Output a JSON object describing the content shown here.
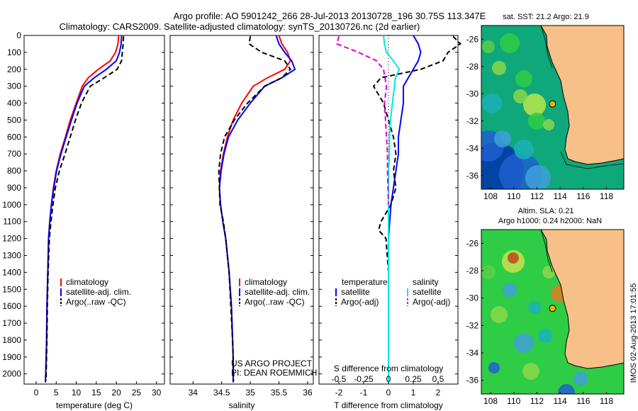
{
  "title_line1": "Argo profile: AO 5901242_266 28-Jul-2013 20130728_196 30.75S 113.347E",
  "title_line2": "Climatology: CARS2009. Satellite-adjusted climatology: synTS_20130726.nc (2d earlier)",
  "timestamp": "IMOS 02-Aug-2013 17:01:55",
  "credit": {
    "line1": "US ARGO PROJECT",
    "line2": "PI: DEAN ROEMMICH"
  },
  "colors": {
    "climatology": "#ff0000",
    "satellite": "#0000ff",
    "argo": "#000000",
    "sat_salinity": "#00e5e5",
    "argo_sal_adj": "#e000e0",
    "land": "#f7c089"
  },
  "chart_data": [
    {
      "id": "temperature",
      "type": "line",
      "xlabel": "temperature (deg C)",
      "ylabel": "",
      "xlim": [
        -3,
        32
      ],
      "ylim": [
        2060,
        0
      ],
      "xticks": [
        0,
        5,
        10,
        15,
        20,
        25,
        30
      ],
      "yticks": [
        0,
        100,
        200,
        300,
        400,
        500,
        600,
        700,
        800,
        900,
        1000,
        1100,
        1200,
        1300,
        1400,
        1500,
        1600,
        1700,
        1800,
        1900,
        2000
      ],
      "legend": [
        "climatology",
        "satellite-adj. clim.",
        "Argo(..raw -QC)"
      ],
      "series": [
        {
          "name": "climatology",
          "color": "#ff0000",
          "style": "solid",
          "x": [
            20.6,
            20.4,
            19.8,
            18.5,
            15.5,
            13.0,
            11.5,
            10.0,
            8.5,
            7.3,
            6.0,
            5.0,
            4.3,
            3.8,
            3.4,
            3.1,
            2.9,
            2.7,
            2.6,
            2.5,
            2.4,
            2.3
          ],
          "y": [
            0,
            50,
            100,
            150,
            200,
            250,
            300,
            400,
            500,
            600,
            700,
            800,
            900,
            1000,
            1100,
            1200,
            1400,
            1600,
            1800,
            1900,
            2000,
            2050
          ]
        },
        {
          "name": "satellite-adj. clim.",
          "color": "#0000ff",
          "style": "solid",
          "x": [
            21.3,
            21.2,
            20.8,
            20.0,
            17.5,
            14.5,
            12.0,
            10.2,
            8.8,
            7.5,
            6.2,
            5.1,
            4.4,
            3.8,
            3.4,
            3.1,
            2.9,
            2.7,
            2.6,
            2.5,
            2.4,
            2.3
          ],
          "y": [
            0,
            50,
            100,
            150,
            200,
            250,
            300,
            400,
            500,
            600,
            700,
            800,
            900,
            1000,
            1100,
            1200,
            1400,
            1600,
            1800,
            1900,
            2000,
            2050
          ]
        },
        {
          "name": "Argo(..raw -QC)",
          "color": "#000000",
          "style": "dashed",
          "x": [
            21.8,
            21.7,
            21.5,
            21.3,
            20.2,
            17.0,
            13.5,
            11.3,
            9.8,
            8.5,
            7.2,
            5.8,
            4.8,
            4.2,
            3.7,
            3.3,
            3.0,
            2.8,
            2.7,
            2.6,
            2.5,
            2.5
          ],
          "y": [
            5,
            50,
            100,
            150,
            200,
            250,
            300,
            400,
            500,
            600,
            700,
            800,
            900,
            1000,
            1100,
            1200,
            1400,
            1600,
            1800,
            1900,
            2000,
            2040
          ]
        }
      ]
    },
    {
      "id": "salinity",
      "type": "line",
      "xlabel": "salinity",
      "xlim": [
        33.6,
        36.1
      ],
      "ylim": [
        2060,
        0
      ],
      "xticks": [
        34,
        34.5,
        35,
        35.5,
        36
      ],
      "xticklabels": [
        "34",
        "34.5",
        "35",
        "35.5",
        "36"
      ],
      "legend": [
        "climatology",
        "satellite-adj. clim.",
        "Argo(..raw -QC)"
      ],
      "series": [
        {
          "name": "climatology",
          "color": "#ff0000",
          "style": "solid",
          "x": [
            35.5,
            35.55,
            35.65,
            35.7,
            35.6,
            35.3,
            35.05,
            34.85,
            34.7,
            34.6,
            34.53,
            34.48,
            34.46,
            34.48,
            34.52,
            34.57,
            34.63,
            34.67,
            34.69,
            34.7,
            34.7
          ],
          "y": [
            0,
            50,
            100,
            150,
            200,
            250,
            300,
            400,
            500,
            600,
            700,
            800,
            900,
            1000,
            1100,
            1200,
            1400,
            1600,
            1800,
            1900,
            2050
          ]
        },
        {
          "name": "satellite-adj. clim.",
          "color": "#0000ff",
          "style": "solid",
          "x": [
            35.45,
            35.5,
            35.6,
            35.72,
            35.78,
            35.55,
            35.25,
            35.0,
            34.78,
            34.62,
            34.54,
            34.49,
            34.46,
            34.48,
            34.52,
            34.57,
            34.63,
            34.67,
            34.69,
            34.7,
            34.7
          ],
          "y": [
            0,
            50,
            100,
            150,
            200,
            250,
            300,
            400,
            500,
            600,
            700,
            800,
            900,
            1000,
            1100,
            1200,
            1400,
            1600,
            1800,
            1900,
            2050
          ]
        },
        {
          "name": "Argo(..raw -QC)",
          "color": "#000000",
          "style": "dashed",
          "x": [
            35.0,
            34.98,
            35.2,
            35.6,
            35.7,
            35.55,
            35.25,
            34.95,
            34.72,
            34.55,
            34.48,
            34.45,
            34.46,
            34.47,
            34.53,
            34.57,
            34.63,
            34.66,
            34.69,
            34.7,
            34.71
          ],
          "y": [
            5,
            50,
            100,
            150,
            200,
            250,
            300,
            400,
            500,
            600,
            700,
            800,
            900,
            1000,
            1100,
            1200,
            1400,
            1600,
            1800,
            1900,
            2040
          ]
        }
      ]
    },
    {
      "id": "difference",
      "type": "line",
      "xlabel_bottom": "T difference from climatology",
      "xlabel_top": "S difference from climatology",
      "xlim": [
        -2.8,
        2.8
      ],
      "ylim": [
        2060,
        0
      ],
      "xticks_T": [
        -2,
        -1,
        0,
        1,
        2
      ],
      "xticks_S": [
        -0.5,
        -0.25,
        0,
        0.25,
        0.5
      ],
      "xticklabels_S": [
        "-0.5",
        "-0.25",
        "0",
        "0.25",
        "0.5"
      ],
      "legend_temperature_title": "temperature",
      "legend_salinity_title": "salinity",
      "legend_temperature": [
        "satellite",
        "Argo(-adj)"
      ],
      "legend_salinity": [
        "satellite",
        "Argo(-adj)"
      ],
      "series": [
        {
          "name": "satellite",
          "group": "temperature",
          "color": "#0000ff",
          "style": "solid",
          "x": [
            1.0,
            1.2,
            1.3,
            1.2,
            1.0,
            0.8,
            0.6,
            0.6,
            0.5,
            0.4,
            0.4,
            0.3,
            0.2,
            0.1,
            0.0,
            0.0,
            0.0,
            0.0,
            0.0
          ],
          "y": [
            0,
            50,
            100,
            150,
            200,
            250,
            300,
            400,
            500,
            600,
            700,
            800,
            900,
            1000,
            1200,
            1400,
            1600,
            1800,
            2050
          ]
        },
        {
          "name": "Argo(-adj)",
          "group": "temperature",
          "color": "#000000",
          "style": "dashed",
          "x": [
            2.6,
            2.9,
            2.4,
            2.2,
            1.3,
            -0.3,
            -0.6,
            -0.2,
            0.0,
            0.2,
            0.3,
            0.2,
            0.3,
            0.1,
            -0.3,
            -0.4,
            -0.1,
            0.0,
            0.0,
            0.0
          ],
          "y": [
            5,
            50,
            100,
            150,
            200,
            250,
            300,
            400,
            500,
            600,
            700,
            800,
            900,
            1000,
            1100,
            1150,
            1200,
            1400,
            1600,
            2040
          ]
        },
        {
          "name": "satellite",
          "group": "salinity",
          "color": "#00e5e5",
          "style": "solid",
          "x": [
            -0.05,
            -0.04,
            -0.02,
            0.05,
            0.11,
            0.07,
            0.06,
            0.04,
            0.02,
            0.01,
            0.01,
            0.0,
            0.0,
            0.0
          ],
          "y": [
            0,
            50,
            100,
            150,
            200,
            250,
            300,
            400,
            500,
            600,
            700,
            800,
            1200,
            2050
          ]
        },
        {
          "name": "Argo(-adj)",
          "group": "salinity",
          "color": "#e000e0",
          "style": "dashed",
          "x": [
            -0.5,
            -0.52,
            -0.3,
            -0.12,
            -0.05,
            -0.02,
            -0.04,
            -0.03,
            -0.02,
            -0.01,
            -0.01,
            0.0
          ],
          "y": [
            5,
            50,
            100,
            150,
            200,
            300,
            400,
            500,
            600,
            700,
            800,
            1000
          ]
        }
      ]
    },
    {
      "id": "sst-map",
      "type": "heatmap",
      "title": "sat. SST: 21.2 Argo: 21.9",
      "xlim": [
        107.2,
        119.5
      ],
      "ylim": [
        -37,
        -25
      ],
      "xticks": [
        108,
        110,
        112,
        114,
        116,
        118
      ],
      "yticks": [
        -26,
        -28,
        -30,
        -32,
        -34,
        -36
      ],
      "float_lon": 113.347,
      "float_lat": -30.75
    },
    {
      "id": "sla-map",
      "type": "heatmap",
      "title_line1": "Altim. SLA: 0.21",
      "title_line2": "Argo h1000: 0.24 h2000: NaN",
      "xlim": [
        107.2,
        119.5
      ],
      "ylim": [
        -37,
        -25
      ],
      "xticks": [
        108,
        110,
        112,
        114,
        116,
        118
      ],
      "yticks": [
        -26,
        -28,
        -30,
        -32,
        -34,
        -36
      ],
      "float_lon": 113.347,
      "float_lat": -30.75
    }
  ]
}
